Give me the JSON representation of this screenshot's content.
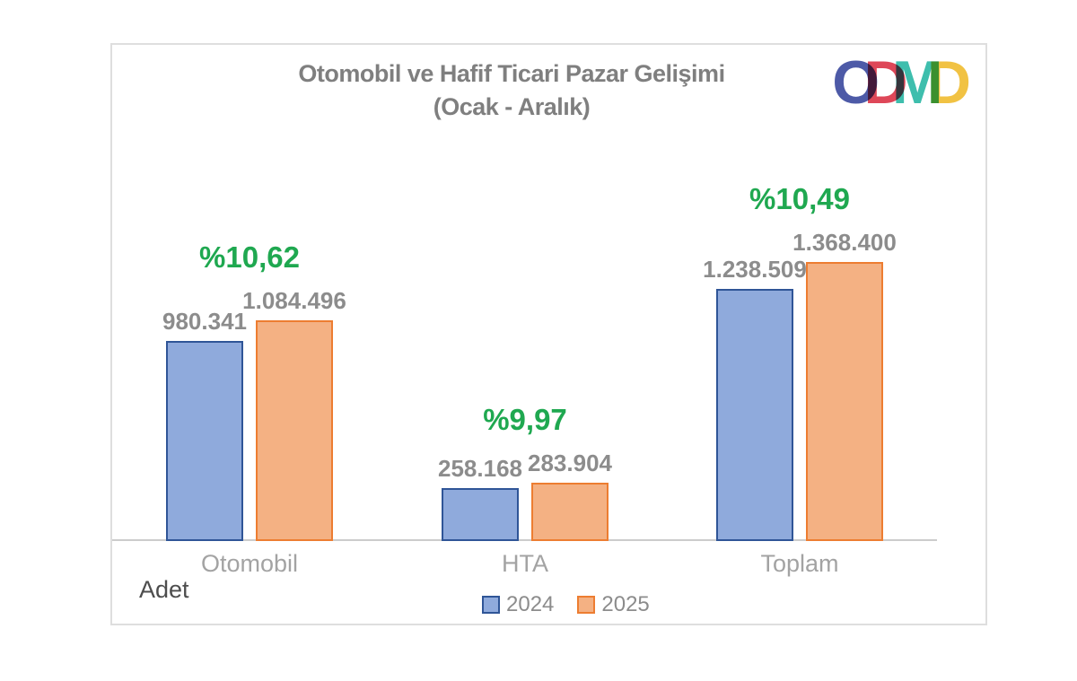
{
  "title": {
    "line1": "Otomobil ve Hafif Ticari Pazar Gelişimi",
    "line2": "(Ocak - Aralık)"
  },
  "logo": {
    "name": "ODMD",
    "letters": [
      {
        "char": "O",
        "color": "#4d5aa7"
      },
      {
        "char": "D",
        "color": "#de4758"
      },
      {
        "char": "M",
        "color": "#3ebead"
      },
      {
        "char": "D",
        "color": "#f1c243"
      }
    ]
  },
  "axis": {
    "unit_label": "Adet"
  },
  "colors": {
    "title_gray": "#7f7f7f",
    "value_label_gray": "#8c8c8c",
    "category_label_gray": "#a3a3a3",
    "pct_green": "#1fa850",
    "bar_2024_fill": "#8faadc",
    "bar_2024_border": "#2f5597",
    "bar_2025_fill": "#f4b183",
    "bar_2025_border": "#ed7d31"
  },
  "chart_data": {
    "type": "bar",
    "title": "Otomobil ve Hafif Ticari Pazar Gelişimi (Ocak - Aralık)",
    "categories": [
      "Otomobil",
      "HTA",
      "Toplam"
    ],
    "series": [
      {
        "name": "2024",
        "values": [
          980341,
          258168,
          1238509
        ],
        "value_labels": [
          "980.341",
          "258.168",
          "1.238.509"
        ],
        "fill": "#8faadc",
        "border": "#2f5597"
      },
      {
        "name": "2025",
        "values": [
          1084496,
          283904,
          1368400
        ],
        "value_labels": [
          "1.084.496",
          "283.904",
          "1.368.400"
        ],
        "fill": "#f4b183",
        "border": "#ed7d31"
      }
    ],
    "pct_change_labels": [
      "%10,62",
      "%9,97",
      "%10,49"
    ],
    "pct_change_color": "#1fa850",
    "xlabel": "",
    "ylabel": "Adet",
    "ylim": [
      0,
      1400000
    ],
    "grid": false,
    "legend_position": "bottom-center",
    "legend_entries": [
      "2024",
      "2025"
    ]
  }
}
